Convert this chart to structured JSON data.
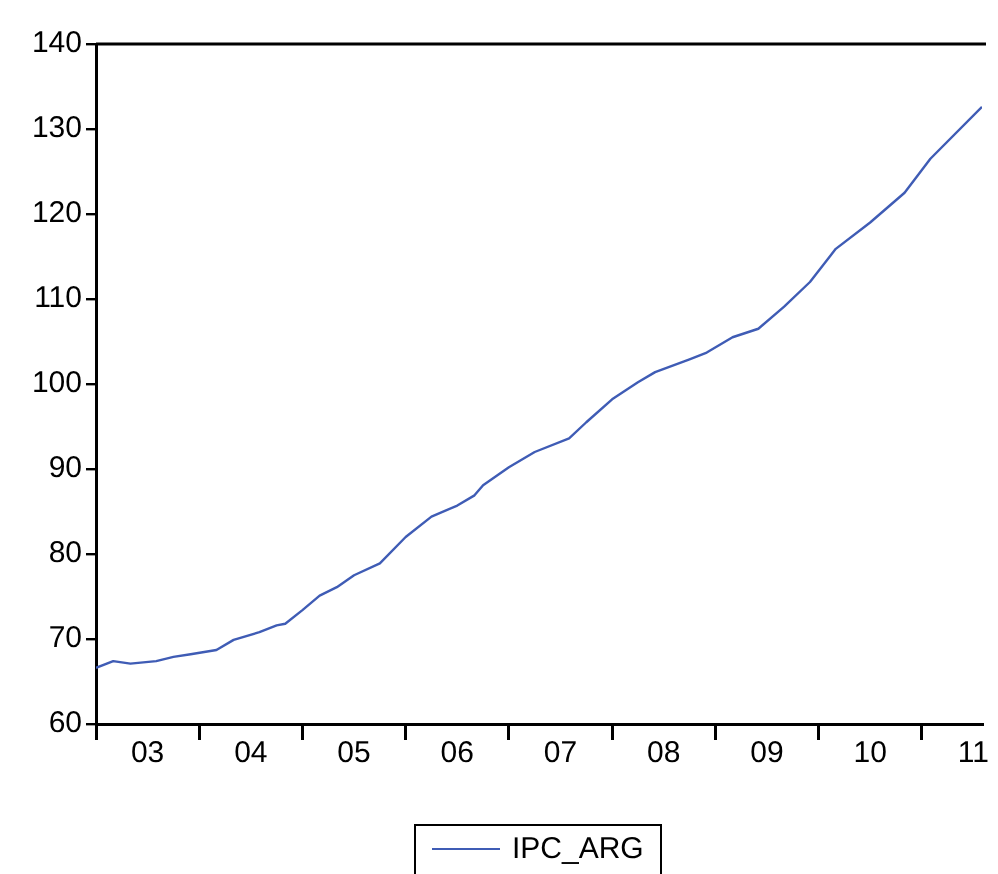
{
  "chart_data": {
    "type": "line",
    "x": [
      "2003-01",
      "2003-03",
      "2003-05",
      "2003-08",
      "2003-10",
      "2003-12",
      "2004-03",
      "2004-05",
      "2004-08",
      "2004-10",
      "2004-11",
      "2005-01",
      "2005-03",
      "2005-05",
      "2005-07",
      "2005-10",
      "2006-01",
      "2006-04",
      "2006-07",
      "2006-09",
      "2006-10",
      "2007-01",
      "2007-04",
      "2007-08",
      "2007-10",
      "2008-01",
      "2008-04",
      "2008-06",
      "2008-10",
      "2008-12",
      "2009-03",
      "2009-06",
      "2009-09",
      "2009-12",
      "2010-03",
      "2010-07",
      "2010-11",
      "2011-02",
      "2011-08"
    ],
    "series": [
      {
        "name": "IPC_ARG",
        "color": "#3f5cb5",
        "values": [
          66.6,
          67.4,
          67.1,
          67.4,
          67.9,
          68.2,
          68.7,
          69.9,
          70.8,
          71.6,
          71.8,
          73.4,
          75.1,
          76.1,
          77.5,
          78.9,
          82.0,
          84.4,
          85.7,
          86.9,
          88.1,
          90.2,
          92.0,
          93.6,
          95.5,
          98.2,
          100.2,
          101.4,
          102.9,
          103.7,
          105.5,
          106.5,
          109.1,
          112.0,
          115.9,
          119.0,
          122.5,
          126.5,
          132.6
        ]
      }
    ],
    "xlim": [
      "2003-01",
      "2011-08"
    ],
    "xticks": [
      {
        "value": "2003-01",
        "label": null
      },
      {
        "value": "2003-07",
        "label": "03"
      },
      {
        "value": "2004-01",
        "label": null
      },
      {
        "value": "2004-07",
        "label": "04"
      },
      {
        "value": "2005-01",
        "label": null
      },
      {
        "value": "2005-07",
        "label": "05"
      },
      {
        "value": "2006-01",
        "label": null
      },
      {
        "value": "2006-07",
        "label": "06"
      },
      {
        "value": "2007-01",
        "label": null
      },
      {
        "value": "2007-07",
        "label": "07"
      },
      {
        "value": "2008-01",
        "label": null
      },
      {
        "value": "2008-07",
        "label": "08"
      },
      {
        "value": "2009-01",
        "label": null
      },
      {
        "value": "2009-07",
        "label": "09"
      },
      {
        "value": "2010-01",
        "label": null
      },
      {
        "value": "2010-07",
        "label": "10"
      },
      {
        "value": "2011-01",
        "label": null
      },
      {
        "value": "2011-07",
        "label": "11"
      }
    ],
    "ylim": [
      60,
      140
    ],
    "yticks": [
      60,
      70,
      80,
      90,
      100,
      110,
      120,
      130,
      140
    ],
    "grid": false,
    "legend": "bottom"
  }
}
